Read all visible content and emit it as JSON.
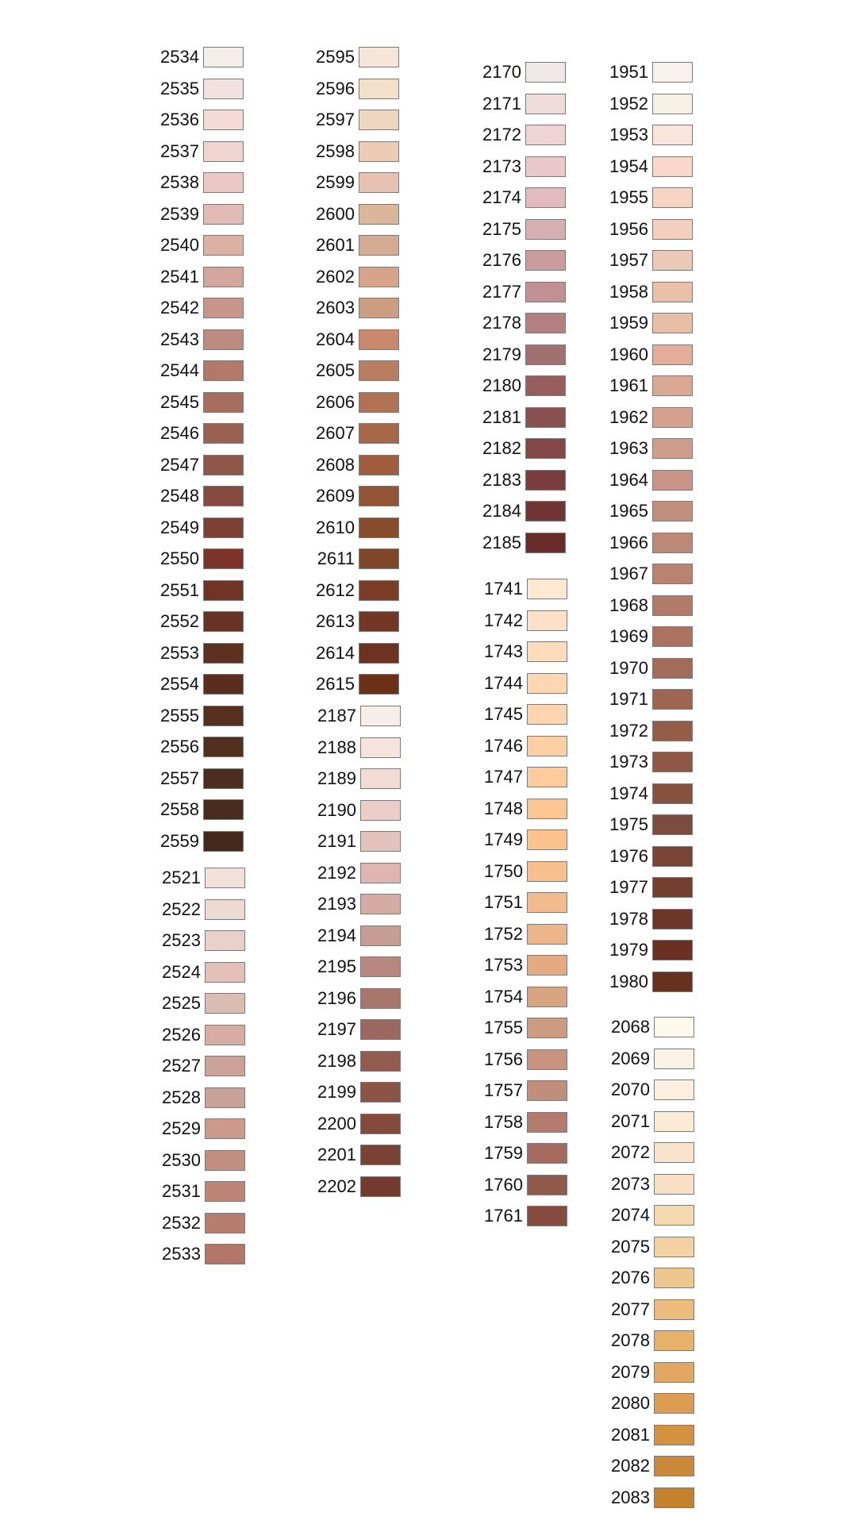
{
  "groups": [
    {
      "codes": [
        "2534",
        "2535",
        "2536",
        "2537",
        "2538",
        "2539",
        "2540",
        "2541",
        "2542",
        "2543",
        "2544",
        "2545",
        "2546",
        "2547",
        "2548",
        "2549",
        "2550",
        "2551",
        "2552",
        "2553",
        "2554",
        "2555",
        "2556",
        "2557",
        "2558",
        "2559"
      ],
      "colors": [
        "#f5ede8",
        "#f2e2df",
        "#f3dcd7",
        "#f0d4d0",
        "#ebc8c3",
        "#e2bcb4",
        "#ddb0a4",
        "#d3a59c",
        "#c7958a",
        "#bc8a7e",
        "#b27869",
        "#a56e5e",
        "#9b6253",
        "#8e5749",
        "#864b3e",
        "#7d4032",
        "#7a342a",
        "#6f3426",
        "#683224",
        "#5f2f20",
        "#5b2d1f",
        "#57301f",
        "#52301f",
        "#4c2d1f",
        "#492c1e",
        "#452a1c"
      ]
    },
    {
      "codes": [
        "2521",
        "2522",
        "2523",
        "2524",
        "2525",
        "2526",
        "2527",
        "2528",
        "2529",
        "2530",
        "2531",
        "2532",
        "2533"
      ],
      "colors": [
        "#f2e1db",
        "#eddad2",
        "#e9d0c8",
        "#e2c0b8",
        "#dbbcb0",
        "#d5ada2",
        "#cba298",
        "#c9a297",
        "#cc998a",
        "#c28e81",
        "#bd8576",
        "#b77d6e",
        "#b47667"
      ]
    },
    {
      "codes": [
        "2595",
        "2596",
        "2597",
        "2598",
        "2599",
        "2600",
        "2601",
        "2602",
        "2603",
        "2604",
        "2605",
        "2606",
        "2607",
        "2608",
        "2609",
        "2610",
        "2611",
        "2612",
        "2613",
        "2614",
        "2615"
      ],
      "colors": [
        "#f6e6da",
        "#f4dfca",
        "#efd6c1",
        "#ecccb6",
        "#e7c1b1",
        "#dcb69b",
        "#d5ab96",
        "#d7a48b",
        "#cc9d80",
        "#c9876b",
        "#b97d61",
        "#b07252",
        "#a66848",
        "#a05d3e",
        "#945535",
        "#884c2c",
        "#80482a",
        "#7b3d26",
        "#743723",
        "#6e3220",
        "#6d3118"
      ]
    },
    {
      "codes": [
        "2187",
        "2188",
        "2189",
        "2190",
        "2191",
        "2192",
        "2193",
        "2194",
        "2195",
        "2196",
        "2197",
        "2198",
        "2199",
        "2200",
        "2201",
        "2202"
      ],
      "colors": [
        "#f6efe9",
        "#f5e3e0",
        "#f2dad5",
        "#ebccc6",
        "#e6c2bd",
        "#deb5b1",
        "#d5aba3",
        "#c69d92",
        "#b8887f",
        "#a9766c",
        "#9c675f",
        "#945b51",
        "#8c5447",
        "#834a3d",
        "#7a4234",
        "#743a2f"
      ]
    },
    {
      "codes": [
        "2170",
        "2171",
        "2172",
        "2173",
        "2174",
        "2175",
        "2176",
        "2177",
        "2178",
        "2179",
        "2180",
        "2181",
        "2182",
        "2183",
        "2184",
        "2185"
      ],
      "colors": [
        "#f1e9e8",
        "#f0dcdd",
        "#efd3d6",
        "#e9c7ca",
        "#e1bbbf",
        "#d5b0b3",
        "#c99c9d",
        "#c28f93",
        "#b47f81",
        "#a46f71",
        "#985e5f",
        "#8a5050",
        "#844748",
        "#7b3c3d",
        "#723535",
        "#6a2c2a"
      ]
    },
    {
      "codes": [
        "1741",
        "1742",
        "1743",
        "1744",
        "1745",
        "1746",
        "1747",
        "1748",
        "1749",
        "1750",
        "1751",
        "1752",
        "1753",
        "1754",
        "1755",
        "1756",
        "1757",
        "1758",
        "1759",
        "1760",
        "1761"
      ],
      "colors": [
        "#fde8d3",
        "#fce1c8",
        "#fddcbd",
        "#fdd6b2",
        "#fcd4ae",
        "#fdd0a4",
        "#fdcb9c",
        "#fcc692",
        "#fcc38c",
        "#f7bf8e",
        "#f1bb8e",
        "#ebb68a",
        "#e4ab82",
        "#d9a480",
        "#cd9b80",
        "#c8947f",
        "#c28e7c",
        "#b27b6e",
        "#a46a5d",
        "#8f594b",
        "#874c3f"
      ]
    },
    {
      "codes": [
        "1951",
        "1952",
        "1953",
        "1954",
        "1955",
        "1956",
        "1957",
        "1958",
        "1959",
        "1960",
        "1961",
        "1962",
        "1963",
        "1964",
        "1965",
        "1966",
        "1967",
        "1968",
        "1969",
        "1970",
        "1971",
        "1972",
        "1973",
        "1974",
        "1975",
        "1976",
        "1977",
        "1978",
        "1979",
        "1980"
      ],
      "colors": [
        "#f7f2ec",
        "#f6f0e5",
        "#fbe4dc",
        "#f9d8c9",
        "#f5d4c4",
        "#f4cfc0",
        "#ecc9b7",
        "#ebc0a8",
        "#e8bfa6",
        "#e3ad9a",
        "#daa795",
        "#d4a18f",
        "#cf9d8b",
        "#c89586",
        "#c28e7d",
        "#bd8977",
        "#bb8270",
        "#b27b69",
        "#ab735f",
        "#a26c59",
        "#9e6551",
        "#955c48",
        "#8f5844",
        "#87503f",
        "#7e4c3f",
        "#784536",
        "#733f2f",
        "#6e3629",
        "#6a3123",
        "#66321f"
      ]
    },
    {
      "codes": [
        "2068",
        "2069",
        "2070",
        "2071",
        "2072",
        "2073",
        "2074",
        "2075",
        "2076",
        "2077",
        "2078",
        "2079",
        "2080",
        "2081",
        "2082",
        "2083"
      ],
      "colors": [
        "#fdf9ec",
        "#faf2e4",
        "#fcefdd",
        "#fbead4",
        "#fae3cc",
        "#f9e0c5",
        "#f6d8ae",
        "#f3d1a2",
        "#f0c68f",
        "#ecbc7d",
        "#e7b36b",
        "#e2a862",
        "#dc9d50",
        "#d49241",
        "#cd893a",
        "#c5822a"
      ]
    }
  ]
}
